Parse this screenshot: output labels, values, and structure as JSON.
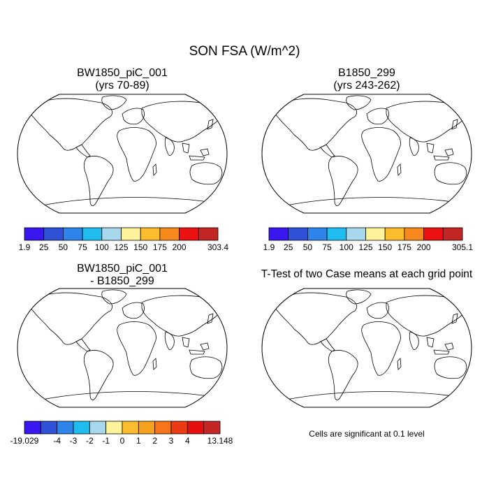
{
  "figure": {
    "title": "SON FSA (W/m^2)",
    "panels": {
      "case_a": {
        "title_line1": "BW1850_piC_001",
        "title_line2": "(yrs 70-89)"
      },
      "case_b": {
        "title_line1": "B1850_299",
        "title_line2": "(yrs 243-262)"
      },
      "diff": {
        "title_line1": "BW1850_piC_001",
        "title_line2": "- B1850_299"
      },
      "ttest": {
        "title": "T-Test of two Case means at each grid point",
        "note": "Cells are significant at 0.1 level"
      }
    }
  },
  "chart_data": [
    {
      "type": "heatmap",
      "panel": "case_a",
      "title": "BW1850_piC_001 (yrs 70-89)",
      "colorbar": {
        "tick_labels": [
          "1.9",
          "25",
          "50",
          "75",
          "100",
          "125",
          "150",
          "175",
          "200",
          "",
          "303.4"
        ],
        "colors": [
          "#3a16f0",
          "#2f52d8",
          "#2f84ea",
          "#1fbcf0",
          "#a8d8ee",
          "#fff49b",
          "#fbbd2e",
          "#f7891c",
          "#ec1212",
          "#c42626"
        ]
      }
    },
    {
      "type": "heatmap",
      "panel": "case_b",
      "title": "B1850_299 (yrs 243-262)",
      "colorbar": {
        "tick_labels": [
          "1.9",
          "25",
          "50",
          "75",
          "100",
          "125",
          "150",
          "175",
          "200",
          "",
          "305.1"
        ],
        "colors": [
          "#3a16f0",
          "#2f52d8",
          "#2f84ea",
          "#1fbcf0",
          "#a8d8ee",
          "#fff49b",
          "#fbbd2e",
          "#f7891c",
          "#ec1212",
          "#c42626"
        ]
      }
    },
    {
      "type": "heatmap",
      "panel": "diff",
      "title": "BW1850_piC_001 - B1850_299",
      "colorbar": {
        "tick_labels": [
          "-19.029",
          "",
          "-4",
          "-3",
          "-2",
          "-1",
          "0",
          "1",
          "2",
          "3",
          "4",
          "",
          "13.148"
        ],
        "colors": [
          "#3a16f0",
          "#2f52d8",
          "#2f84ea",
          "#1fbcf0",
          "#a8d8ee",
          "#fff49b",
          "#fbbd2e",
          "#f7a21c",
          "#f57518",
          "#ec3a12",
          "#e60e0e",
          "#c42626"
        ]
      }
    },
    {
      "type": "heatmap",
      "panel": "ttest",
      "title": "T-Test of two Case means at each grid point",
      "colorbar": null,
      "significance_level": 0.1,
      "significant_color": "#e60000"
    }
  ]
}
